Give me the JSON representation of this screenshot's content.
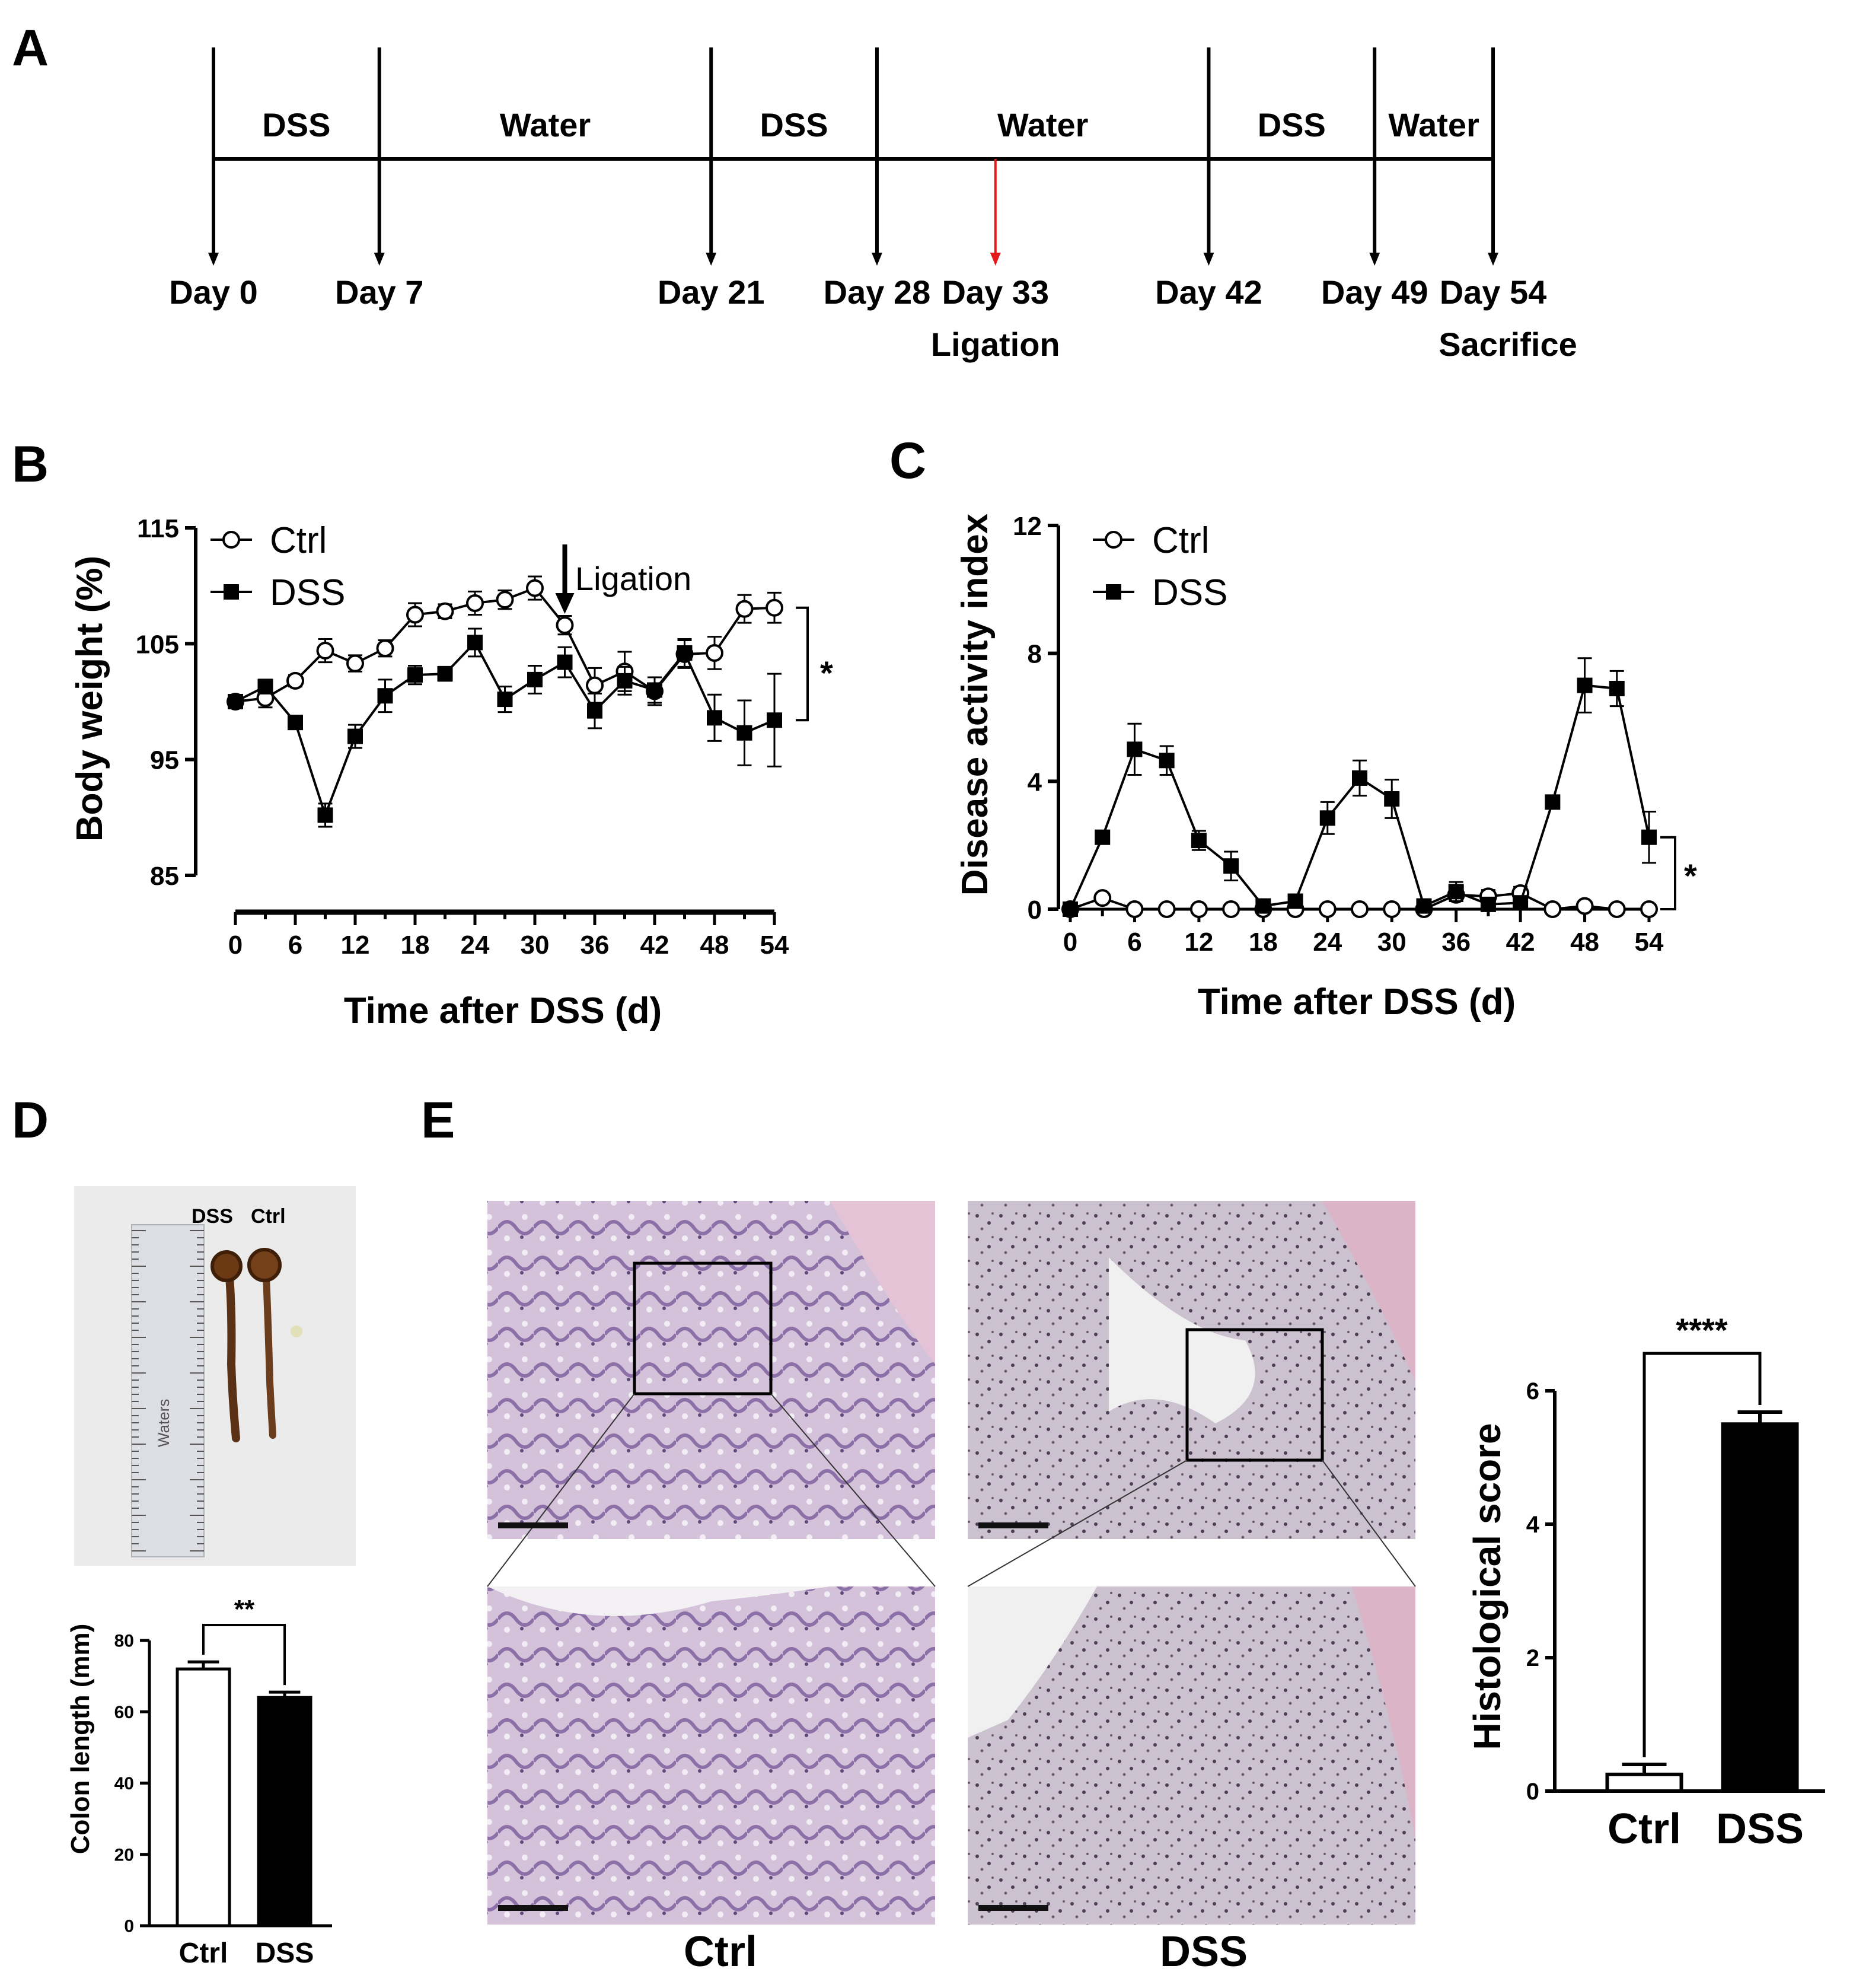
{
  "panels": {
    "A": "A",
    "B": "B",
    "C": "C",
    "D": "D",
    "E": "E"
  },
  "timeline": {
    "segments": [
      {
        "label": "DSS",
        "from": 0,
        "to": 7
      },
      {
        "label": "Water",
        "from": 7,
        "to": 21
      },
      {
        "label": "DSS",
        "from": 21,
        "to": 28
      },
      {
        "label": "Water",
        "from": 28,
        "to": 42
      },
      {
        "label": "DSS",
        "from": 42,
        "to": 49
      },
      {
        "label": "Water",
        "from": 49,
        "to": 54
      }
    ],
    "events": [
      {
        "day": 0,
        "label": "Day 0",
        "note": ""
      },
      {
        "day": 7,
        "label": "Day 7",
        "note": ""
      },
      {
        "day": 21,
        "label": "Day 21",
        "note": ""
      },
      {
        "day": 28,
        "label": "Day 28",
        "note": ""
      },
      {
        "day": 33,
        "label": "Day 33",
        "note": "Ligation",
        "highlight": "#e41a1c"
      },
      {
        "day": 42,
        "label": "Day 42",
        "note": ""
      },
      {
        "day": 49,
        "label": "Day 49",
        "note": ""
      },
      {
        "day": 54,
        "label": "Day 54",
        "note": "Sacrifice"
      }
    ]
  },
  "chart_data": [
    {
      "id": "B",
      "type": "line",
      "xlabel": "Time after DSS (d)",
      "ylabel": "Body weight (%)",
      "xlim": [
        0,
        54
      ],
      "ylim": [
        85,
        115
      ],
      "xticks": [
        0,
        6,
        12,
        18,
        24,
        30,
        36,
        42,
        48,
        54
      ],
      "yticks": [
        85,
        95,
        105,
        115
      ],
      "annotation": {
        "text": "Ligation",
        "x": 33
      },
      "significance": "*",
      "series": [
        {
          "name": "Ctrl",
          "marker": "open-circle",
          "x": [
            0,
            3,
            6,
            9,
            12,
            15,
            18,
            21,
            24,
            27,
            30,
            33,
            36,
            39,
            42,
            45,
            48,
            51,
            54
          ],
          "y": [
            100,
            100.3,
            101.8,
            104.4,
            103.3,
            104.6,
            107.5,
            107.8,
            108.5,
            108.8,
            109.8,
            106.6,
            101.4,
            102.6,
            100.9,
            104.1,
            104.2,
            108.0,
            108.1
          ],
          "err": [
            0.4,
            0.8,
            0.5,
            1.0,
            0.7,
            0.7,
            1.0,
            0.6,
            1.0,
            0.8,
            1.0,
            0.8,
            1.5,
            1.7,
            1.2,
            1.2,
            1.4,
            1.2,
            1.3
          ]
        },
        {
          "name": "DSS",
          "marker": "filled-square",
          "x": [
            0,
            3,
            6,
            9,
            12,
            15,
            18,
            21,
            24,
            27,
            30,
            33,
            36,
            39,
            42,
            45,
            48,
            51,
            54
          ],
          "y": [
            100,
            101.3,
            98.2,
            90.2,
            97.0,
            100.5,
            102.3,
            102.4,
            105.1,
            100.2,
            101.9,
            103.4,
            99.2,
            101.8,
            101.0,
            104.2,
            98.6,
            97.3,
            98.4
          ],
          "err": [
            0.5,
            0.6,
            0.5,
            1.0,
            1.0,
            1.4,
            0.8,
            0.6,
            1.2,
            1.1,
            1.2,
            1.3,
            1.5,
            1.2,
            1.1,
            1.2,
            2.0,
            2.8,
            4.0
          ]
        }
      ]
    },
    {
      "id": "C",
      "type": "line",
      "xlabel": "Time after DSS (d)",
      "ylabel": "Disease activity index",
      "xlim": [
        0,
        54
      ],
      "ylim": [
        0,
        12
      ],
      "xticks": [
        0,
        6,
        12,
        18,
        24,
        30,
        36,
        42,
        48,
        54
      ],
      "yticks": [
        0,
        4,
        8,
        12
      ],
      "significance": "*",
      "series": [
        {
          "name": "Ctrl",
          "marker": "open-circle",
          "x": [
            0,
            3,
            6,
            9,
            12,
            15,
            18,
            21,
            24,
            27,
            30,
            33,
            36,
            39,
            42,
            45,
            48,
            51,
            54
          ],
          "y": [
            0,
            0.35,
            0,
            0,
            0,
            0,
            0,
            0,
            0,
            0,
            0,
            0,
            0.45,
            0.4,
            0.5,
            0,
            0.1,
            0,
            0
          ],
          "err": [
            0,
            0.1,
            0,
            0,
            0,
            0,
            0,
            0,
            0,
            0,
            0,
            0,
            0.2,
            0.2,
            0.2,
            0,
            0.1,
            0,
            0
          ]
        },
        {
          "name": "DSS",
          "marker": "filled-square",
          "x": [
            0,
            3,
            6,
            9,
            12,
            15,
            18,
            21,
            24,
            27,
            30,
            33,
            36,
            39,
            42,
            45,
            48,
            51,
            54
          ],
          "y": [
            0,
            2.25,
            5.0,
            4.65,
            2.15,
            1.35,
            0.1,
            0.25,
            2.85,
            4.1,
            3.45,
            0.1,
            0.55,
            0.15,
            0.2,
            3.35,
            7.0,
            6.9,
            2.25
          ],
          "err": [
            0,
            0.2,
            0.8,
            0.45,
            0.3,
            0.45,
            0.15,
            0.2,
            0.5,
            0.55,
            0.6,
            0.1,
            0.3,
            0.15,
            0.2,
            0.2,
            0.85,
            0.55,
            0.8
          ]
        }
      ]
    },
    {
      "id": "D",
      "type": "bar",
      "categories": [
        "Ctrl",
        "DSS"
      ],
      "values": [
        72,
        64
      ],
      "err": [
        2,
        1.5
      ],
      "fill": [
        "#ffffff",
        "#000000"
      ],
      "ylabel": "Colon length (mm)",
      "ylim": [
        0,
        80
      ],
      "yticks": [
        0,
        20,
        40,
        60,
        80
      ],
      "significance": "**"
    },
    {
      "id": "E",
      "type": "bar",
      "categories": [
        "Ctrl",
        "DSS"
      ],
      "values": [
        0.25,
        5.5
      ],
      "err": [
        0.15,
        0.18
      ],
      "fill": [
        "#ffffff",
        "#000000"
      ],
      "ylabel": "Histological score",
      "ylim": [
        0,
        6
      ],
      "yticks": [
        0,
        2,
        4,
        6
      ],
      "significance": "****"
    }
  ],
  "photo": {
    "labels": [
      "DSS",
      "Ctrl"
    ],
    "ruler_text": "Waters",
    "colors": {
      "background": "#ebebeb",
      "tissue": "#5a3114",
      "ruler": "#d9dbe0"
    }
  },
  "histology": {
    "captions": [
      "Ctrl",
      "DSS"
    ],
    "colors": {
      "ctrl_base": "#cdbad6",
      "ctrl_tissue": "#8d70a7",
      "dss_base": "#cfc8d4",
      "dss_tissue": "#6d5c72",
      "muscle": "#dca8c4"
    }
  }
}
